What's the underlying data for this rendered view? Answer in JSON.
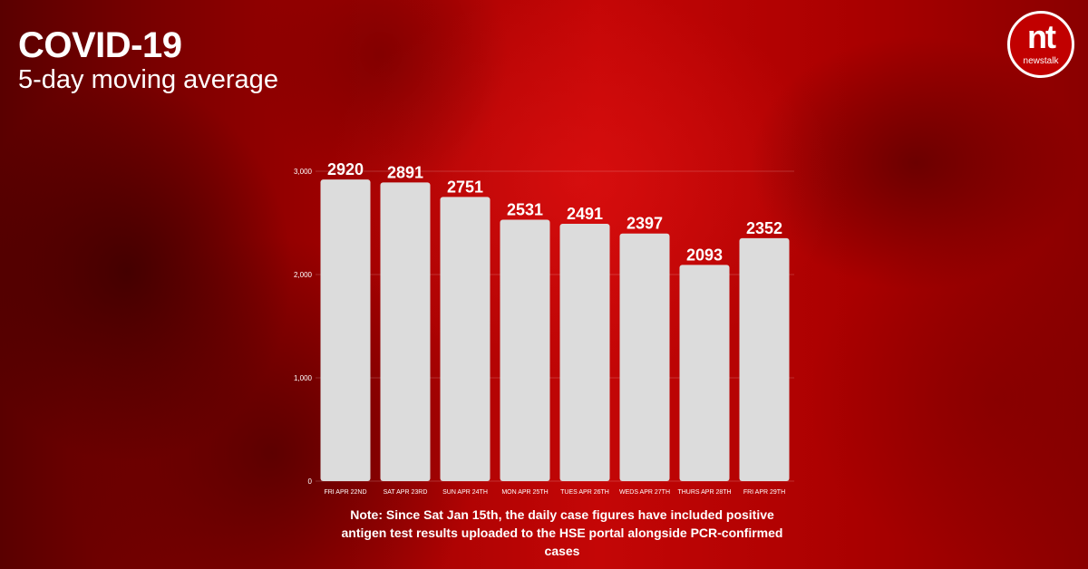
{
  "header": {
    "title": "COVID-19",
    "subtitle": "5-day moving average"
  },
  "logo": {
    "mark": "nt",
    "wordmark": "newstalk"
  },
  "note": {
    "text": "Note: Since Sat Jan 15th, the daily case figures have included positive antigen test results uploaded to the HSE portal alongside PCR-confirmed cases"
  },
  "colors": {
    "bar": "#dcdcdc",
    "background": "#b30000",
    "text": "#ffffff"
  },
  "chart_data": {
    "type": "bar",
    "categories": [
      "FRI APR 22ND",
      "SAT APR 23RD",
      "SUN APR 24TH",
      "MON APR 25TH",
      "TUES APR 26TH",
      "WEDS APR 27TH",
      "THURS APR 28TH",
      "FRI APR 29TH"
    ],
    "values": [
      2920,
      2891,
      2751,
      2531,
      2491,
      2397,
      2093,
      2352
    ],
    "data_labels": [
      "2920",
      "2891",
      "2751",
      "2531",
      "2491",
      "2397",
      "2093",
      "2352"
    ],
    "ylim": [
      0,
      3000
    ],
    "yticks": [
      0,
      1000,
      2000,
      3000
    ],
    "ytick_labels": [
      "0",
      "1,000",
      "2,000",
      "3,000"
    ],
    "grid": true,
    "legend": "none"
  }
}
